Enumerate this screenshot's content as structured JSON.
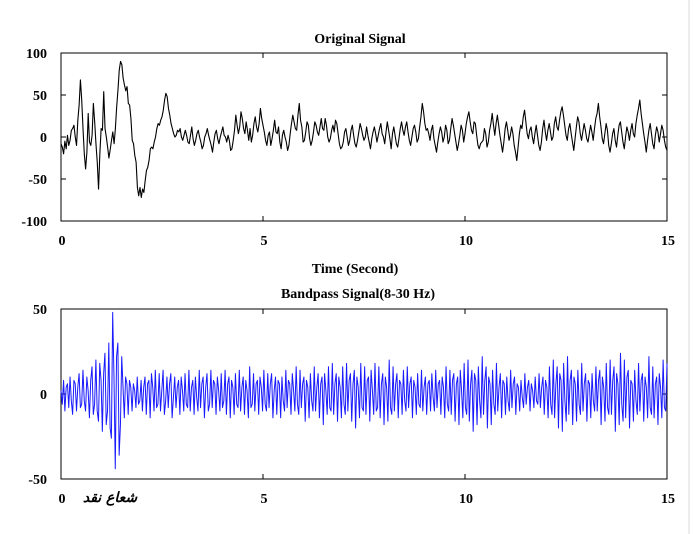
{
  "chart_data": [
    {
      "type": "line",
      "title": "Original Signal",
      "xlabel": "Time (Second)",
      "ylabel": "",
      "xlim": [
        0,
        15
      ],
      "ylim": [
        -100,
        100
      ],
      "x_ticks": [
        "0",
        "5",
        "10",
        "15"
      ],
      "y_ticks": [
        "100",
        "50",
        "0",
        "-50",
        "-100"
      ],
      "grid": false,
      "line_color": "#000000",
      "series": [
        {
          "sample_interval_s": 0.025,
          "y": [
            -8,
            -12,
            -20,
            -5,
            -14,
            2,
            -10,
            -4,
            8,
            10,
            14,
            0,
            -10,
            20,
            38,
            68,
            44,
            10,
            -20,
            -38,
            -18,
            28,
            -6,
            -10,
            2,
            40,
            18,
            -8,
            -30,
            -62,
            -20,
            10,
            8,
            54,
            10,
            0,
            -12,
            -25,
            -15,
            -4,
            6,
            -8,
            10,
            36,
            56,
            80,
            90,
            86,
            70,
            62,
            55,
            60,
            40,
            38,
            22,
            -4,
            -8,
            -22,
            -30,
            -60,
            -70,
            -60,
            -72,
            -62,
            -66,
            -52,
            -40,
            -36,
            -28,
            -14,
            -12,
            -14,
            -6,
            0,
            10,
            16,
            14,
            20,
            24,
            32,
            44,
            52,
            48,
            34,
            26,
            16,
            10,
            4,
            0,
            2,
            8,
            6,
            10,
            0,
            -4,
            2,
            8,
            2,
            -6,
            -8,
            2,
            12,
            -2,
            -10,
            -4,
            4,
            8,
            0,
            -6,
            -14,
            -10,
            0,
            4,
            10,
            2,
            -4,
            -10,
            -18,
            -6,
            4,
            8,
            -2,
            -8,
            0,
            6,
            12,
            2,
            0,
            -6,
            2,
            -4,
            -16,
            -14,
            -4,
            8,
            26,
            14,
            4,
            12,
            30,
            22,
            10,
            4,
            18,
            8,
            -4,
            10,
            -6,
            2,
            16,
            24,
            12,
            6,
            16,
            34,
            22,
            14,
            6,
            -4,
            -10,
            2,
            6,
            -10,
            -2,
            8,
            20,
            6,
            4,
            12,
            -6,
            -14,
            2,
            8,
            0,
            -6,
            -16,
            -10,
            4,
            16,
            26,
            18,
            10,
            8,
            26,
            40,
            20,
            12,
            -6,
            -4,
            6,
            18,
            14,
            -2,
            -10,
            -4,
            6,
            18,
            14,
            6,
            2,
            12,
            22,
            10,
            8,
            22,
            14,
            0,
            -6,
            -2,
            8,
            14,
            6,
            20,
            16,
            4,
            -8,
            -14,
            -12,
            -6,
            6,
            10,
            0,
            -10,
            -4,
            8,
            14,
            2,
            -8,
            -12,
            -4,
            6,
            16,
            10,
            2,
            -4,
            0,
            12,
            2,
            -6,
            -14,
            -2,
            6,
            12,
            4,
            -6,
            2,
            10,
            16,
            4,
            0,
            -8,
            6,
            18,
            8,
            -2,
            -14,
            4,
            12,
            2,
            -8,
            -12,
            -2,
            10,
            18,
            8,
            2,
            12,
            18,
            6,
            -4,
            -10,
            0,
            10,
            14,
            6,
            -6,
            -2,
            12,
            24,
            40,
            30,
            16,
            8,
            10,
            4,
            -4,
            8,
            14,
            -2,
            -10,
            -18,
            -6,
            4,
            12,
            6,
            -6,
            0,
            14,
            8,
            -8,
            -4,
            10,
            22,
            14,
            4,
            -6,
            -16,
            -8,
            2,
            14,
            8,
            -6,
            4,
            16,
            24,
            30,
            18,
            8,
            4,
            18,
            16,
            2,
            -10,
            -14,
            -8,
            -6,
            -4,
            10,
            4,
            -12,
            -6,
            8,
            16,
            28,
            14,
            2,
            16,
            26,
            14,
            2,
            -8,
            -18,
            -6,
            10,
            18,
            8,
            -4,
            2,
            12,
            4,
            -10,
            -18,
            -28,
            -12,
            4,
            14,
            10,
            24,
            32,
            18,
            4,
            -2,
            8,
            12,
            0,
            -8,
            4,
            14,
            2,
            -10,
            -16,
            -6,
            10,
            20,
            6,
            -4,
            8,
            16,
            6,
            -4,
            0,
            16,
            24,
            12,
            8,
            20,
            30,
            36,
            26,
            14,
            2,
            -4,
            10,
            16,
            4,
            -6,
            -16,
            -2,
            12,
            24,
            18,
            4,
            -4,
            6,
            16,
            8,
            -2,
            -6,
            4,
            14,
            6,
            -4,
            10,
            22,
            28,
            40,
            24,
            12,
            -2,
            -8,
            4,
            16,
            8,
            -10,
            -18,
            -8,
            4,
            10,
            -4,
            -12,
            2,
            14,
            18,
            6,
            -6,
            -14,
            0,
            12,
            6,
            -4,
            8,
            16,
            4,
            0,
            16,
            26,
            34,
            44,
            28,
            16,
            4,
            -6,
            -18,
            -4,
            8,
            16,
            4,
            -8,
            -14,
            2,
            12,
            6,
            -6,
            4,
            14,
            8,
            -4,
            -12,
            -16
          ]
        }
      ]
    },
    {
      "type": "line",
      "title": "Bandpass Signal(8-30 Hz)",
      "xlabel": "",
      "ylabel": "",
      "xlim": [
        0,
        15
      ],
      "ylim": [
        -50,
        50
      ],
      "x_ticks": [
        "0",
        "5",
        "10",
        "15"
      ],
      "y_ticks": [
        "50",
        "0",
        "-50"
      ],
      "grid": false,
      "line_color": "#1a1aff",
      "series": [
        {
          "sample_interval_s": 0.02,
          "description_of_shape": "",
          "y": [
            2,
            -6,
            8,
            -10,
            4,
            6,
            -8,
            10,
            -4,
            -12,
            8,
            6,
            -10,
            4,
            12,
            -8,
            -6,
            14,
            -4,
            -10,
            10,
            2,
            -14,
            8,
            16,
            -12,
            -6,
            20,
            -10,
            -16,
            18,
            8,
            -22,
            12,
            24,
            -18,
            -10,
            30,
            -20,
            -26,
            48,
            10,
            -44,
            22,
            30,
            -36,
            -18,
            22,
            4,
            -14,
            10,
            6,
            -12,
            8,
            4,
            -10,
            6,
            2,
            -8,
            10,
            -6,
            -4,
            8,
            -10,
            4,
            10,
            -12,
            6,
            8,
            -14,
            12,
            4,
            -10,
            14,
            -8,
            -6,
            12,
            -10,
            2,
            14,
            -12,
            -4,
            10,
            -8,
            6,
            12,
            -14,
            -2,
            10,
            -8,
            4,
            8,
            -12,
            10,
            2,
            -10,
            12,
            -6,
            -8,
            14,
            -10,
            4,
            8,
            -12,
            10,
            -2,
            -10,
            14,
            -8,
            6,
            10,
            -14,
            4,
            12,
            -10,
            -6,
            14,
            -8,
            8,
            6,
            -12,
            10,
            2,
            -10,
            12,
            -8,
            -4,
            14,
            -12,
            6,
            10,
            -14,
            8,
            4,
            -12,
            12,
            -6,
            -8,
            14,
            -10,
            4,
            10,
            -12,
            8,
            2,
            -14,
            16,
            -8,
            -6,
            12,
            -10,
            6,
            8,
            -12,
            10,
            4,
            -10,
            14,
            -6,
            -10,
            12,
            -8,
            6,
            12,
            -14,
            2,
            10,
            -12,
            8,
            6,
            -14,
            10,
            -4,
            -10,
            14,
            -8,
            8,
            6,
            -12,
            12,
            2,
            -10,
            16,
            -6,
            -12,
            14,
            -8,
            6,
            10,
            -16,
            8,
            4,
            -14,
            12,
            -4,
            -10,
            16,
            -10,
            4,
            12,
            -14,
            6,
            10,
            -18,
            12,
            2,
            -12,
            16,
            -8,
            -10,
            18,
            -12,
            6,
            12,
            -16,
            10,
            4,
            -14,
            16,
            -6,
            -12,
            18,
            -10,
            8,
            12,
            -16,
            6,
            14,
            -20,
            10,
            4,
            -14,
            18,
            -8,
            -10,
            16,
            -12,
            8,
            10,
            -16,
            14,
            2,
            -12,
            18,
            -10,
            -8,
            16,
            -14,
            6,
            12,
            -18,
            10,
            4,
            -16,
            20,
            -8,
            -12,
            16,
            -10,
            6,
            12,
            -14,
            8,
            6,
            -12,
            14,
            -4,
            -10,
            16,
            -8,
            6,
            10,
            -14,
            8,
            4,
            -12,
            12,
            -6,
            -8,
            14,
            -10,
            4,
            10,
            -12,
            6,
            8,
            -10,
            12,
            -2,
            -10,
            14,
            -8,
            6,
            8,
            -12,
            10,
            4,
            -14,
            16,
            -6,
            -10,
            14,
            -12,
            8,
            12,
            -16,
            6,
            10,
            -18,
            14,
            2,
            -14,
            18,
            -8,
            -12,
            20,
            -16,
            6,
            14,
            -22,
            12,
            8,
            -18,
            16,
            -4,
            -14,
            22,
            -12,
            8,
            16,
            -20,
            10,
            6,
            -18,
            14,
            -6,
            -12,
            18,
            -10,
            4,
            12,
            -14,
            8,
            6,
            -12,
            10,
            -4,
            -10,
            14,
            -8,
            6,
            10,
            -12,
            6,
            4,
            -10,
            8,
            -2,
            -8,
            12,
            -6,
            4,
            8,
            -10,
            6,
            2,
            -8,
            10,
            -4,
            -6,
            12,
            -8,
            4,
            10,
            -12,
            8,
            4,
            -14,
            16,
            -6,
            -12,
            20,
            -14,
            6,
            16,
            -20,
            12,
            8,
            -22,
            18,
            -4,
            -16,
            22,
            -12,
            8,
            14,
            -18,
            10,
            6,
            -16,
            14,
            -6,
            -12,
            18,
            -10,
            6,
            12,
            -16,
            8,
            6,
            -14,
            12,
            -4,
            -10,
            16,
            -10,
            8,
            14,
            -18,
            10,
            4,
            -16,
            18,
            -8,
            -12,
            20,
            -12,
            8,
            16,
            -22,
            12,
            6,
            -18,
            24,
            -6,
            -16,
            20,
            -14,
            10,
            14,
            -20,
            8,
            6,
            -16,
            14,
            -4,
            -12,
            18,
            -10,
            8,
            12,
            -16,
            10,
            4,
            -14,
            22,
            -8,
            -12,
            16,
            -14,
            6,
            10,
            -18,
            12,
            4,
            -14,
            20,
            -8,
            -10,
            18
          ]
        }
      ]
    }
  ],
  "watermark_text": "شعاع نقد"
}
